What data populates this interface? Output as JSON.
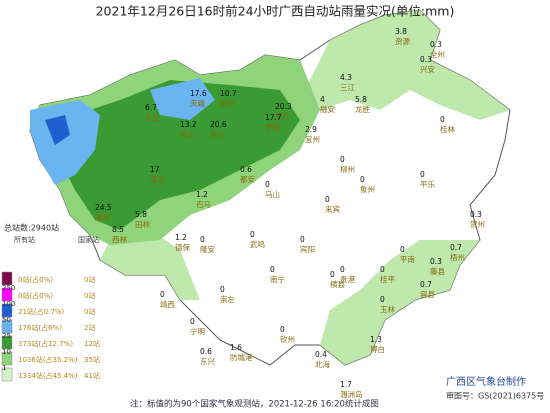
{
  "header": {
    "title": "2021年12月26日16时前24小时广西自动站雨量实况(单位:mm)"
  },
  "legend": {
    "total": "总站数:2940站",
    "col_all": "所有站",
    "col_national": "国家站",
    "items": [
      {
        "color": "#7b0a4a",
        "all": "0站(占0%)",
        "national": "0站"
      },
      {
        "color": "#ff00ff",
        "all": "0站(占0%)",
        "national": "0站"
      },
      {
        "color": "#1f5fd0",
        "all": "21站(占0.7%)",
        "national": "0站"
      },
      {
        "color": "#6ab4f0",
        "all": "176站(占6%)",
        "national": "2站"
      },
      {
        "color": "#3a9a34",
        "all": "373站(占12.7%)",
        "national": "12站"
      },
      {
        "color": "#8fd37a",
        "all": "1036站(占35.2%)",
        "national": "35站"
      },
      {
        "color": "#d6f2c8",
        "all": "1334站(占45.4%)",
        "national": "41站"
      }
    ],
    "boundaries": [
      250,
      100,
      50,
      25,
      10,
      1
    ]
  },
  "stations": [
    {
      "name": "资源",
      "value": "3.8"
    },
    {
      "name": "全州",
      "value": "0.3"
    },
    {
      "name": "兴安",
      "value": "0.3"
    },
    {
      "name": "三江",
      "value": "4.3"
    },
    {
      "name": "龙胜",
      "value": "5.8"
    },
    {
      "name": "融安",
      "value": "4"
    },
    {
      "name": "天峨",
      "value": "17.6"
    },
    {
      "name": "南丹",
      "value": "10.7"
    },
    {
      "name": "环江",
      "value": "20.3"
    },
    {
      "name": "凤山",
      "value": "13.2"
    },
    {
      "name": "东兰",
      "value": "20.6"
    },
    {
      "name": "罗城",
      "value": "17.7"
    },
    {
      "name": "宜州",
      "value": "2.9"
    },
    {
      "name": "乐业",
      "value": "6.7"
    },
    {
      "name": "隆林",
      "value": "24.5"
    },
    {
      "name": "凌云",
      "value": "17"
    },
    {
      "name": "田林",
      "value": "5.8"
    },
    {
      "name": "西林",
      "value": "8.5"
    },
    {
      "name": "巴马",
      "value": "1.2"
    },
    {
      "name": "都安",
      "value": "0.6"
    },
    {
      "name": "马山",
      "value": "0"
    },
    {
      "name": "桂林",
      "value": "0"
    },
    {
      "name": "柳州",
      "value": "0"
    },
    {
      "name": "象州",
      "value": "0"
    },
    {
      "name": "来宾",
      "value": "0"
    },
    {
      "name": "平乐",
      "value": "0"
    },
    {
      "name": "贺州",
      "value": "0.3"
    },
    {
      "name": "梧州",
      "value": "0.7"
    },
    {
      "name": "藤县",
      "value": "0.3"
    },
    {
      "name": "平南",
      "value": "0"
    },
    {
      "name": "桂平",
      "value": "0"
    },
    {
      "name": "贵港",
      "value": "0"
    },
    {
      "name": "宾阳",
      "value": "0"
    },
    {
      "name": "武鸣",
      "value": "0"
    },
    {
      "name": "隆安",
      "value": "0"
    },
    {
      "name": "德保",
      "value": "1.2"
    },
    {
      "name": "靖西",
      "value": "0"
    },
    {
      "name": "南宁",
      "value": "0"
    },
    {
      "name": "横县",
      "value": "0"
    },
    {
      "name": "玉林",
      "value": "0"
    },
    {
      "name": "容县",
      "value": "0.7"
    },
    {
      "name": "博白",
      "value": "1.3"
    },
    {
      "name": "崇左",
      "value": "0"
    },
    {
      "name": "宁明",
      "value": "0"
    },
    {
      "name": "钦州",
      "value": "0"
    },
    {
      "name": "防城港",
      "value": "1.6"
    },
    {
      "name": "东兴",
      "value": "0.6"
    },
    {
      "name": "北海",
      "value": "0.4"
    },
    {
      "name": "涠洲岛",
      "value": "1.7"
    }
  ],
  "footer": {
    "note": "注：标值的为90个国家气象观测站，2021-12-26 16:20统计成图",
    "producer": "广西区气象台制作",
    "approval": "审图号：GS(2021)6375号"
  }
}
